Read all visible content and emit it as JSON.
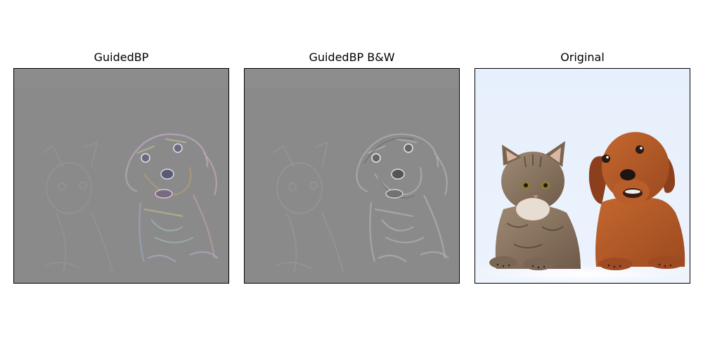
{
  "figure": {
    "panels": [
      {
        "title": "GuidedBP",
        "kind": "guided-backprop-color"
      },
      {
        "title": "GuidedBP B&W",
        "kind": "guided-backprop-grayscale"
      },
      {
        "title": "Original",
        "kind": "photo-cat-and-dog"
      }
    ]
  },
  "colors": {
    "saliency_background": "#8a8a8a",
    "photo_background": "#e8f0fd",
    "dog_fur": "#b35a2a",
    "cat_fur": "#8d7560"
  }
}
